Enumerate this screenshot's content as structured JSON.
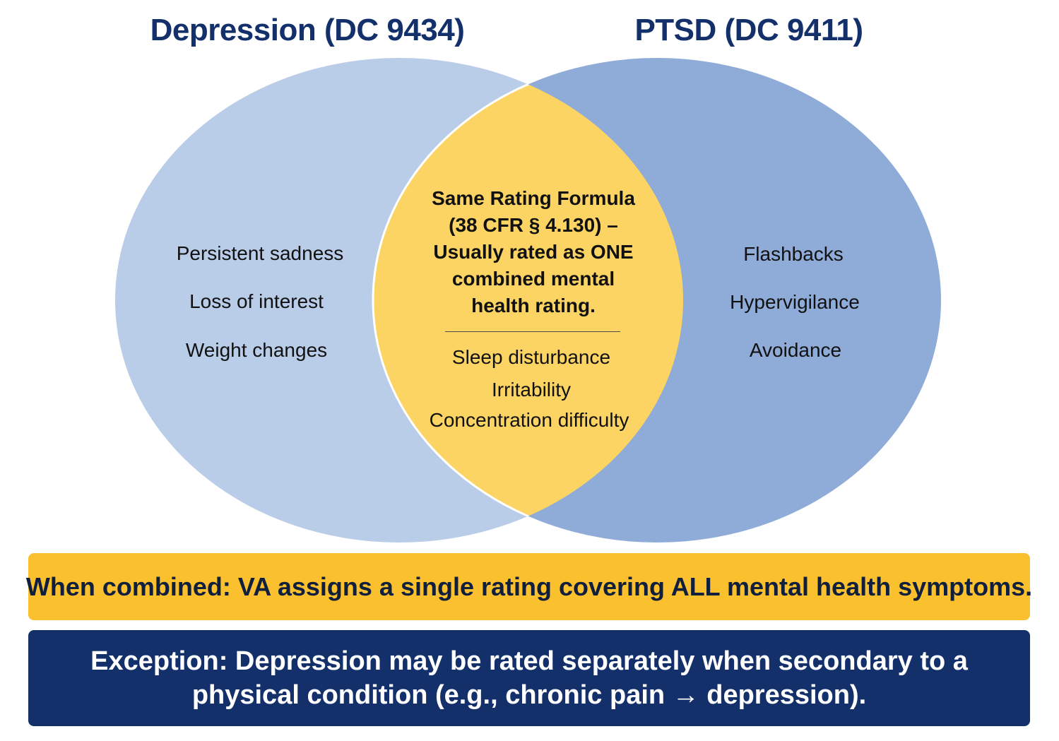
{
  "titles": {
    "left": "Depression (DC 9434)",
    "right": "PTSD (DC 9411)"
  },
  "left_items": [
    "Persistent sadness",
    "Loss of interest",
    "Weight changes"
  ],
  "right_items": [
    "Flashbacks",
    "Hypervigilance",
    "Avoidance"
  ],
  "overlap": {
    "heading": "Same Rating Formula (38 CFR § 4.130) – Usually rated as ONE combined mental health rating.",
    "items": [
      "Sleep disturbance",
      "Irritability",
      "Concentration difficulty"
    ]
  },
  "banners": {
    "combined": "When combined: VA assigns a single rating covering ALL mental health symptoms.",
    "exception": "Exception: Depression may be rated separately when secondary to a physical condition (e.g., chronic pain → depression)."
  },
  "colors": {
    "left_circle": "#b9cce8",
    "right_circle": "#8fabd8",
    "overlap": "#fcd463",
    "title": "#13306b",
    "banner_yellow": "#fbc02d",
    "banner_navy": "#13306b"
  }
}
